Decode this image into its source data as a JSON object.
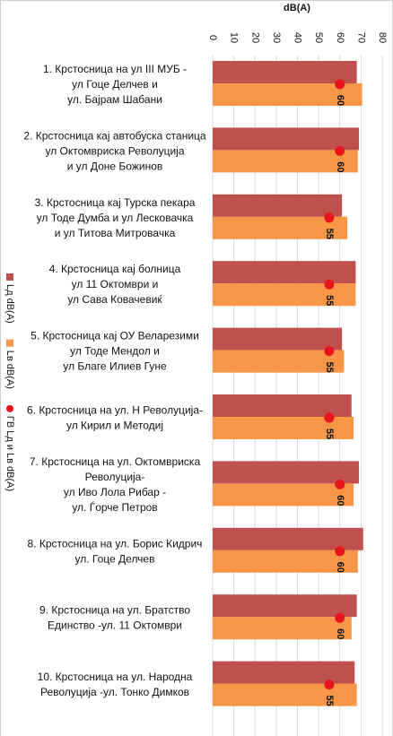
{
  "chart_data": {
    "type": "bar",
    "x_axis_label": "dB(A)",
    "categories": [
      "1. Крстосница на ул III МУБ -\nул Гоце Делчев и\nул. Бајрам Шабани",
      "2. Крстосница кај автобуска станица\nул Октомвриска Револуција\nи ул Доне Божинов",
      "3. Крстосница кај Турска пекара\nул Тоде Думба и ул Лесковачка\nи ул Титова Митровачка",
      "4. Крстосница кај болница\nул 11 Октомври и\nул Сава Ковачевиќ",
      "5. Крстосница кај ОУ Веларезими\nул Тоде Мендол и\nул Благе Илиев Гуне",
      "6. Крстосница на ул. Н Револуција-\nул Кирил и Методиј",
      "7. Крстосница на ул. Октомвриска\nРеволуција-\nул Иво Лола Рибар -\nул. Ѓорче Петров",
      "8. Крстосница на ул. Борис Кидрич\nул. Гоце Делчев",
      "9. Крстосница на ул. Братство\nЕдинство -ул. 11 Октомври",
      "10. Крстосница на ул. Народна\nРеволуција -ул. Тонко Димков"
    ],
    "series": [
      {
        "name": "Lд dB(A)",
        "color": "#c0504d",
        "values": [
          68,
          69,
          61,
          67.5,
          61,
          65.5,
          69,
          71,
          68,
          67
        ]
      },
      {
        "name": "Lв dB(A)",
        "color": "#f79646",
        "values": [
          70.5,
          68.5,
          63.5,
          67.5,
          62,
          66.5,
          66.5,
          68.5,
          65.5,
          68
        ]
      },
      {
        "name": "ГВ Lд и Lв dB(A)",
        "color": "#e8141b",
        "type": "scatter",
        "values": [
          60,
          60,
          55,
          55,
          55,
          55,
          60,
          60,
          60,
          55
        ]
      }
    ],
    "xlim": [
      0,
      80
    ],
    "xticks": [
      0,
      10,
      20,
      30,
      40,
      50,
      60,
      70,
      80
    ],
    "grid": true
  }
}
